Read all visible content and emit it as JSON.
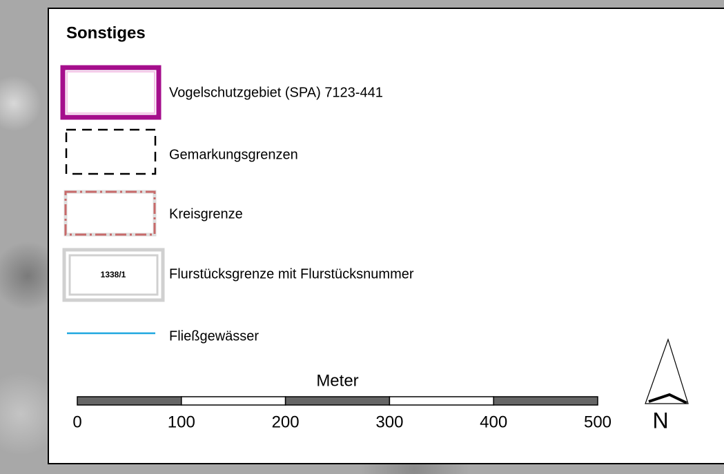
{
  "legend": {
    "title": "Sonstiges",
    "items": [
      {
        "label": "Vogelschutzgebiet (SPA) 7123-441"
      },
      {
        "label": "Gemarkungsgrenzen"
      },
      {
        "label": "Kreisgrenze"
      },
      {
        "label": "Flurstücksgrenze mit Flurstücksnummer",
        "sample_text": "1338/1"
      },
      {
        "label": "Fließgewässer"
      }
    ]
  },
  "scale_bar": {
    "title": "Meter",
    "ticks": [
      0,
      100,
      200,
      300,
      400,
      500
    ]
  },
  "north_arrow": {
    "label": "N"
  }
}
